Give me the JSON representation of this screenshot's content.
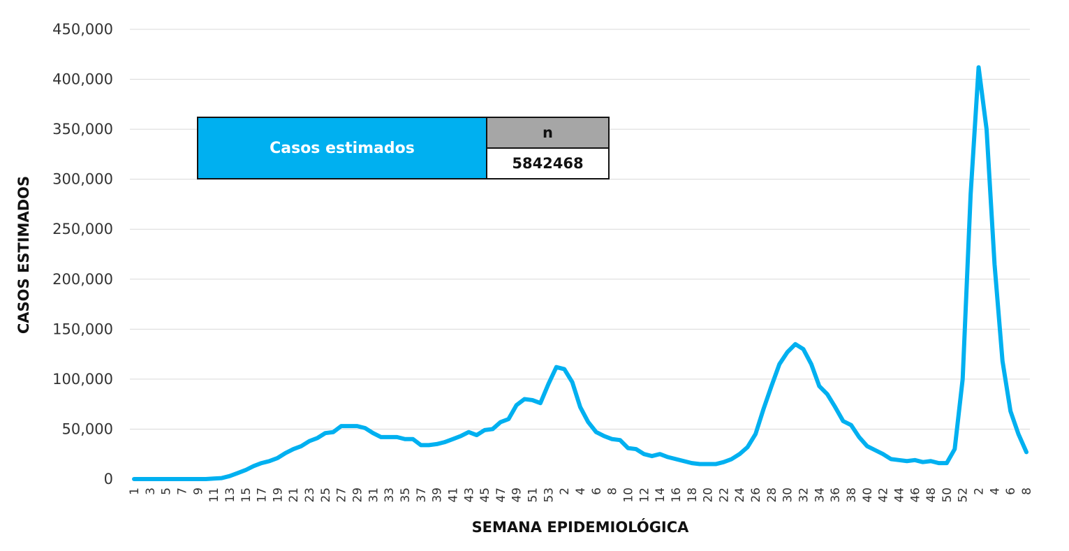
{
  "summary": {
    "label": "Casos estimados",
    "column_header": "n",
    "value": "5842468"
  },
  "chart_data": {
    "type": "line",
    "title": "",
    "xlabel": "SEMANA EPIDEMIOLÓGICA",
    "ylabel": "CASOS ESTIMADOS",
    "ylim": [
      0,
      450000
    ],
    "yticks": [
      0,
      50000,
      100000,
      150000,
      200000,
      250000,
      300000,
      350000,
      400000,
      450000
    ],
    "ytick_labels": [
      "0",
      "50,000",
      "100,000",
      "150,000",
      "200,000",
      "250,000",
      "300,000",
      "350,000",
      "400,000",
      "450,000"
    ],
    "grid": true,
    "line_color": "#00b0f0",
    "categories": [
      "1",
      "2",
      "3",
      "4",
      "5",
      "6",
      "7",
      "8",
      "9",
      "10",
      "11",
      "12",
      "13",
      "14",
      "15",
      "16",
      "17",
      "18",
      "19",
      "20",
      "21",
      "22",
      "23",
      "24",
      "25",
      "26",
      "27",
      "28",
      "29",
      "30",
      "31",
      "32",
      "33",
      "34",
      "35",
      "36",
      "37",
      "38",
      "39",
      "40",
      "41",
      "42",
      "43",
      "44",
      "45",
      "46",
      "47",
      "48",
      "49",
      "50",
      "51",
      "52",
      "53",
      "1",
      "2",
      "3",
      "4",
      "5",
      "6",
      "7",
      "8",
      "9",
      "10",
      "11",
      "12",
      "13",
      "14",
      "15",
      "16",
      "17",
      "18",
      "19",
      "20",
      "21",
      "22",
      "23",
      "24",
      "25",
      "26",
      "27",
      "28",
      "29",
      "30",
      "31",
      "32",
      "33",
      "34",
      "35",
      "36",
      "37",
      "38",
      "39",
      "40",
      "41",
      "42",
      "43",
      "44",
      "45",
      "46",
      "47",
      "48",
      "49",
      "50",
      "51",
      "52",
      "1",
      "2",
      "3",
      "4",
      "5",
      "6",
      "7",
      "8"
    ],
    "tick_labels": [
      "1",
      "3",
      "5",
      "7",
      "9",
      "11",
      "13",
      "15",
      "17",
      "19",
      "21",
      "23",
      "25",
      "27",
      "29",
      "31",
      "33",
      "35",
      "37",
      "39",
      "41",
      "43",
      "45",
      "47",
      "49",
      "51",
      "53",
      "2",
      "4",
      "6",
      "8",
      "10",
      "12",
      "14",
      "16",
      "18",
      "20",
      "22",
      "24",
      "26",
      "28",
      "30",
      "32",
      "34",
      "36",
      "38",
      "40",
      "42",
      "44",
      "46",
      "48",
      "50",
      "52",
      "2",
      "4",
      "6",
      "8"
    ],
    "values": [
      0,
      0,
      0,
      0,
      0,
      0,
      0,
      0,
      0,
      0,
      500,
      1000,
      3000,
      6000,
      9000,
      13000,
      16000,
      18000,
      21000,
      26000,
      30000,
      33000,
      38000,
      41000,
      46000,
      47000,
      53000,
      53000,
      53000,
      51000,
      46000,
      42000,
      42000,
      42000,
      40000,
      40000,
      34000,
      34000,
      35000,
      37000,
      40000,
      43000,
      47000,
      44000,
      49000,
      50000,
      57000,
      60000,
      74000,
      80000,
      79000,
      76000,
      95000,
      112000,
      110000,
      97000,
      72000,
      57000,
      47000,
      43000,
      40000,
      39000,
      31000,
      30000,
      25000,
      23000,
      25000,
      22000,
      20000,
      18000,
      16000,
      15000,
      15000,
      15000,
      17000,
      20000,
      25000,
      32000,
      45000,
      70000,
      93000,
      115000,
      127000,
      135000,
      130000,
      115000,
      93000,
      85000,
      72000,
      58000,
      54000,
      42000,
      33000,
      29000,
      25000,
      20000,
      19000,
      18000,
      19000,
      17000,
      18000,
      16000,
      16000,
      30000,
      100000,
      285000,
      412000,
      350000,
      215000,
      118000,
      68000,
      45000,
      27000
    ]
  }
}
